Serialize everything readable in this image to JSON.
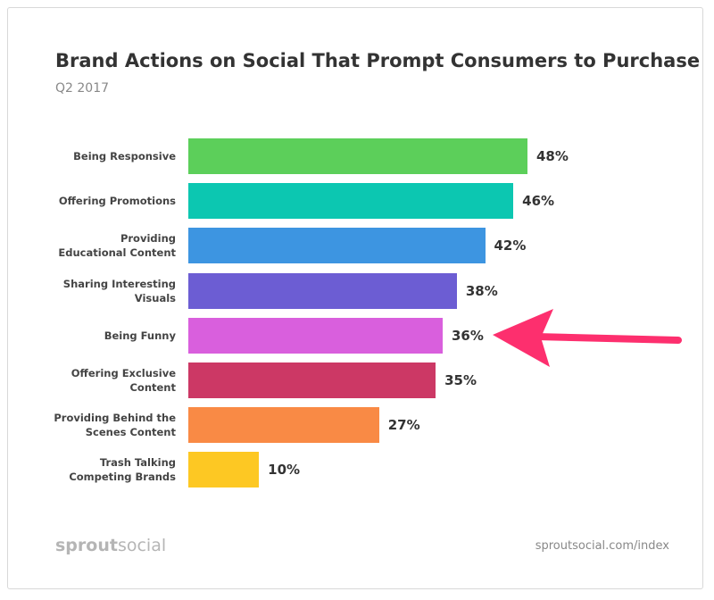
{
  "chart_data": {
    "type": "bar",
    "orientation": "horizontal",
    "title": "Brand Actions on Social That Prompt Consumers to Purchase",
    "subtitle": "Q2 2017",
    "categories": [
      "Being Responsive",
      "Offering Promotions",
      "Providing Educational Content",
      "Sharing Interesting Visuals",
      "Being Funny",
      "Offering Exclusive Content",
      "Providing Behind the Scenes Content",
      "Trash Talking Competing Brands"
    ],
    "values": [
      48,
      46,
      42,
      38,
      36,
      35,
      27,
      10
    ],
    "value_labels": [
      "48%",
      "46%",
      "42%",
      "38%",
      "36%",
      "35%",
      "27%",
      "10%"
    ],
    "colors": [
      "#5ccf5a",
      "#0cc7b1",
      "#3d95e1",
      "#6c5dd3",
      "#d95fdd",
      "#cc3865",
      "#f98a45",
      "#fdc823"
    ]
  },
  "footer": {
    "logo_bold": "sprout",
    "logo_light": "social",
    "link": "sproutsocial.com/index"
  }
}
